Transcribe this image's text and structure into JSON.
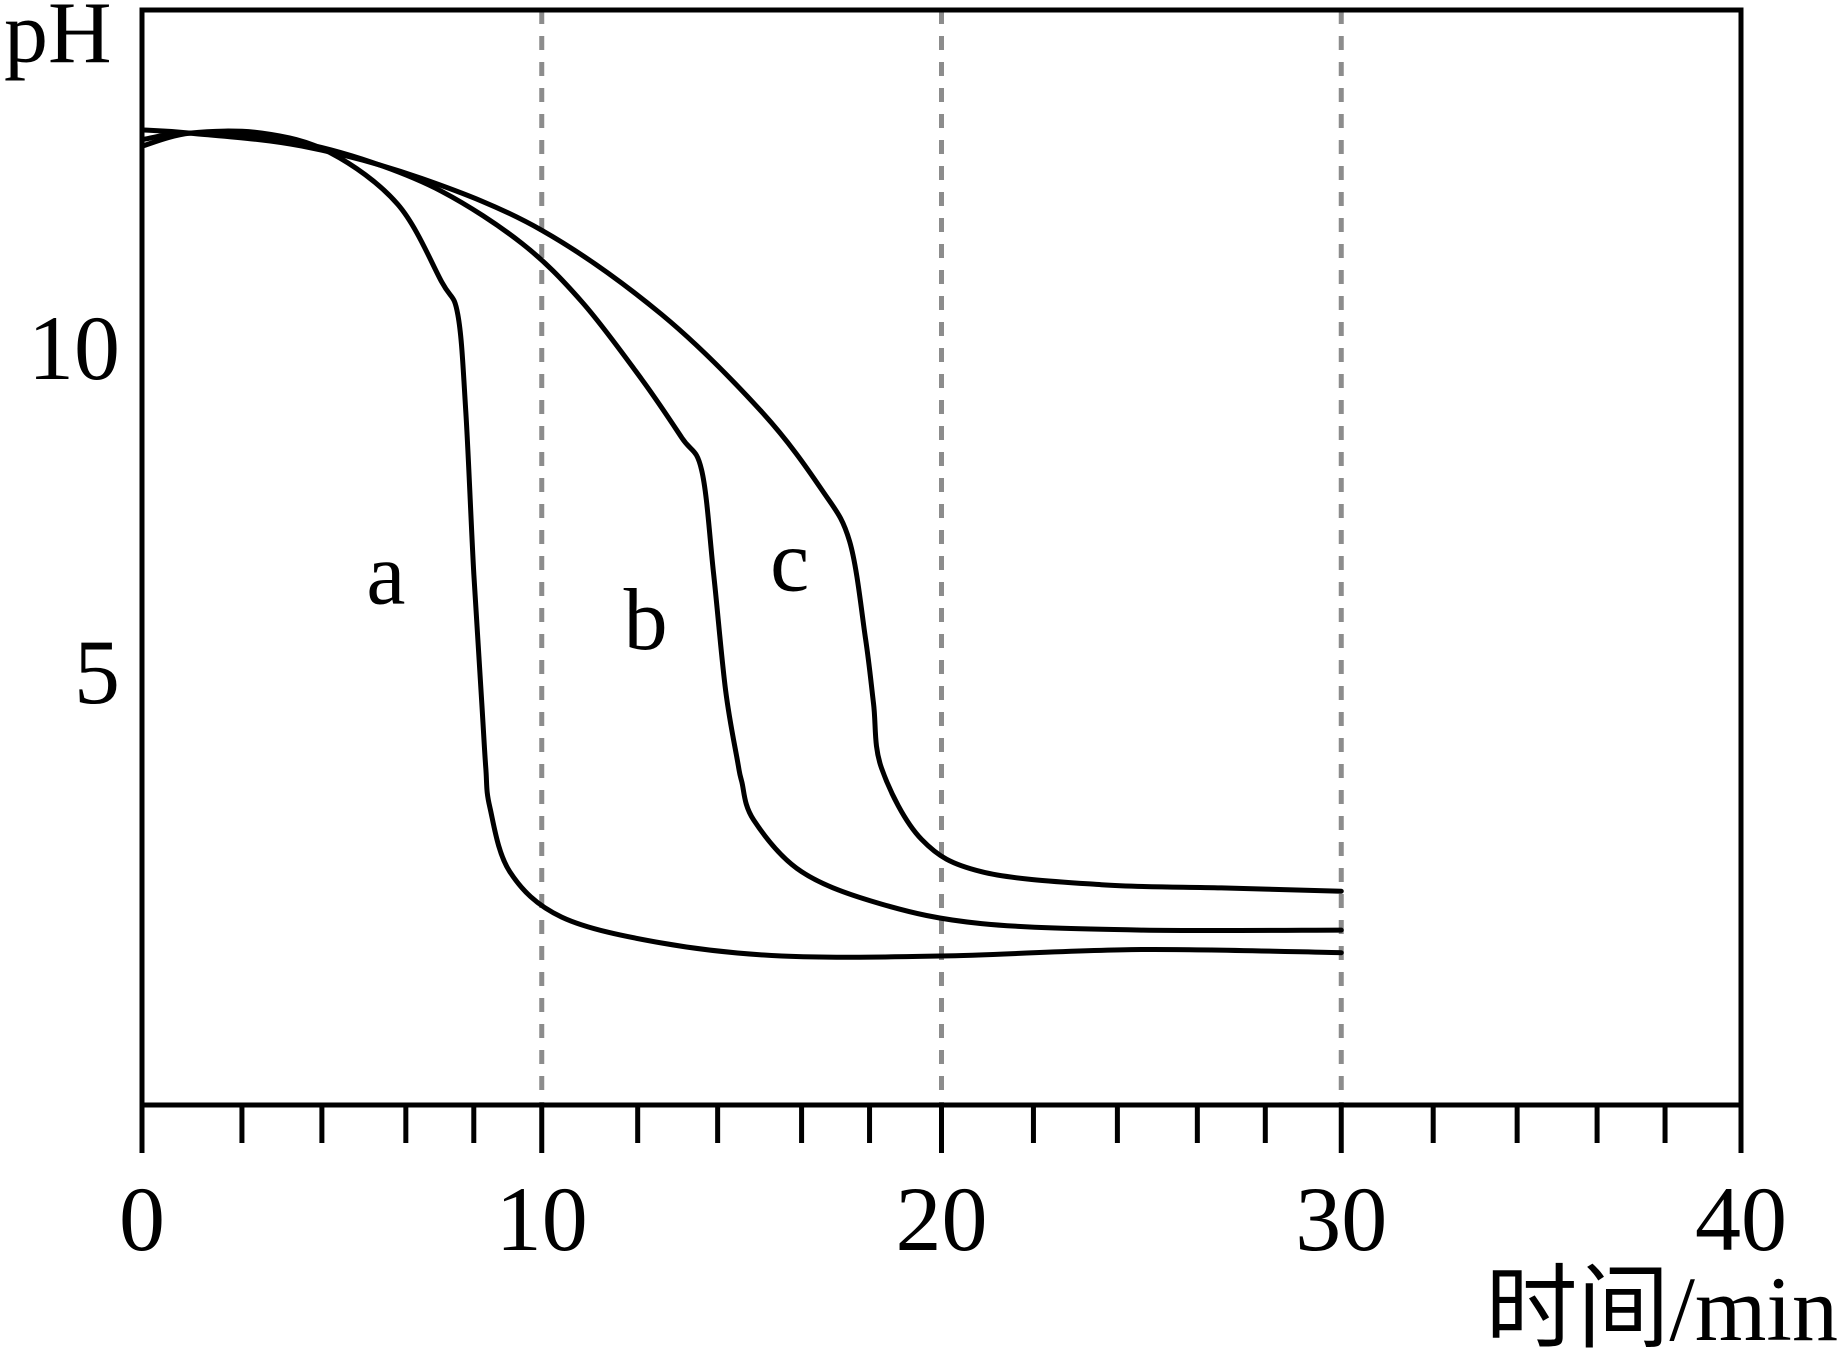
{
  "chart_data": {
    "type": "line",
    "xlabel": "时间/min",
    "ylabel": "pH",
    "xlim": [
      0,
      40
    ],
    "ylim": [
      -1.7,
      15.2
    ],
    "x_ticks": [
      0,
      10,
      20,
      30,
      40
    ],
    "x_tick_labels": [
      "0",
      "10",
      "20",
      "30",
      "40"
    ],
    "y_ticks": [
      10,
      5
    ],
    "y_tick_labels": [
      "10",
      "5"
    ],
    "x_minor_ticks": [
      2.5,
      4.5,
      6.6,
      8.3,
      12.4,
      14.4,
      16.5,
      18.2,
      22.3,
      24.4,
      26.4,
      28.1,
      32.3,
      34.4,
      36.4,
      38.1
    ],
    "vertical_reference_lines": [
      10,
      20,
      30
    ],
    "grid": false,
    "series": [
      {
        "name": "a",
        "x": [
          0,
          1.2,
          3.0,
          4.7,
          6.4,
          7.5,
          7.9,
          8.1,
          8.3,
          8.5,
          8.6,
          8.7,
          9.2,
          10.5,
          13,
          16,
          20,
          25,
          30
        ],
        "y": [
          13.1,
          13.3,
          13.3,
          13.0,
          12.2,
          11.0,
          10.5,
          9.0,
          6.5,
          4.5,
          3.5,
          2.9,
          1.9,
          1.2,
          0.8,
          0.6,
          0.6,
          0.7,
          0.65
        ]
      },
      {
        "name": "b",
        "x": [
          0,
          1.2,
          3.5,
          5.5,
          7.5,
          9.5,
          11,
          12.5,
          13.5,
          14.0,
          14.3,
          14.6,
          14.9,
          15.0,
          15.3,
          16.5,
          18.5,
          21,
          25,
          30
        ],
        "y": [
          13.2,
          13.3,
          13.2,
          12.9,
          12.4,
          11.6,
          10.7,
          9.5,
          8.6,
          8.1,
          6.5,
          4.7,
          3.6,
          3.3,
          2.7,
          1.9,
          1.4,
          1.1,
          1.0,
          1.0
        ]
      },
      {
        "name": "c",
        "x": [
          0,
          1.2,
          4.0,
          7.0,
          10,
          13,
          15.5,
          17.0,
          17.7,
          18.1,
          18.3,
          18.5,
          19.5,
          21,
          24,
          27,
          30
        ],
        "y": [
          13.35,
          13.3,
          13.1,
          12.6,
          11.8,
          10.5,
          9.0,
          7.8,
          7.0,
          5.5,
          4.5,
          3.5,
          2.4,
          1.9,
          1.7,
          1.65,
          1.6
        ]
      }
    ]
  }
}
